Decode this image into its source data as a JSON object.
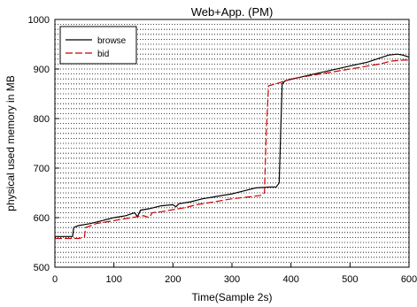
{
  "chart_data": {
    "type": "line",
    "title": "Web+App. (PM)",
    "xlabel": "Time(Sample 2s)",
    "ylabel": "physical used memory in MB",
    "xlim": [
      0,
      600
    ],
    "ylim": [
      500,
      1000
    ],
    "xticks": [
      0,
      100,
      200,
      300,
      400,
      500,
      600
    ],
    "yticks": [
      500,
      600,
      700,
      800,
      900,
      1000
    ],
    "grid": "horizontal dotted lines every 10 MB",
    "legend_position": "top-left",
    "series": [
      {
        "name": "browse",
        "color": "#000000",
        "dash": "solid",
        "points": [
          [
            0,
            562
          ],
          [
            30,
            562
          ],
          [
            32,
            580
          ],
          [
            40,
            584
          ],
          [
            60,
            588
          ],
          [
            80,
            594
          ],
          [
            100,
            600
          ],
          [
            120,
            604
          ],
          [
            135,
            610
          ],
          [
            140,
            602
          ],
          [
            145,
            615
          ],
          [
            160,
            618
          ],
          [
            180,
            624
          ],
          [
            200,
            626
          ],
          [
            205,
            622
          ],
          [
            210,
            628
          ],
          [
            230,
            632
          ],
          [
            250,
            638
          ],
          [
            270,
            642
          ],
          [
            300,
            648
          ],
          [
            320,
            654
          ],
          [
            340,
            660
          ],
          [
            365,
            662
          ],
          [
            375,
            662
          ],
          [
            380,
            670
          ],
          [
            385,
            870
          ],
          [
            390,
            876
          ],
          [
            410,
            882
          ],
          [
            440,
            890
          ],
          [
            470,
            898
          ],
          [
            500,
            906
          ],
          [
            530,
            914
          ],
          [
            550,
            922
          ],
          [
            565,
            928
          ],
          [
            580,
            930
          ],
          [
            590,
            928
          ],
          [
            600,
            924
          ]
        ]
      },
      {
        "name": "bid",
        "color": "#cc0000",
        "dash": "dashed",
        "points": [
          [
            0,
            558
          ],
          [
            40,
            558
          ],
          [
            50,
            560
          ],
          [
            52,
            580
          ],
          [
            70,
            588
          ],
          [
            90,
            592
          ],
          [
            110,
            596
          ],
          [
            130,
            600
          ],
          [
            150,
            604
          ],
          [
            160,
            600
          ],
          [
            165,
            610
          ],
          [
            180,
            612
          ],
          [
            200,
            616
          ],
          [
            220,
            620
          ],
          [
            240,
            626
          ],
          [
            270,
            632
          ],
          [
            300,
            638
          ],
          [
            330,
            642
          ],
          [
            350,
            645
          ],
          [
            355,
            650
          ],
          [
            358,
            770
          ],
          [
            362,
            866
          ],
          [
            380,
            872
          ],
          [
            400,
            880
          ],
          [
            430,
            886
          ],
          [
            460,
            892
          ],
          [
            490,
            898
          ],
          [
            520,
            904
          ],
          [
            550,
            910
          ],
          [
            570,
            916
          ],
          [
            590,
            918
          ],
          [
            600,
            918
          ]
        ]
      }
    ]
  }
}
